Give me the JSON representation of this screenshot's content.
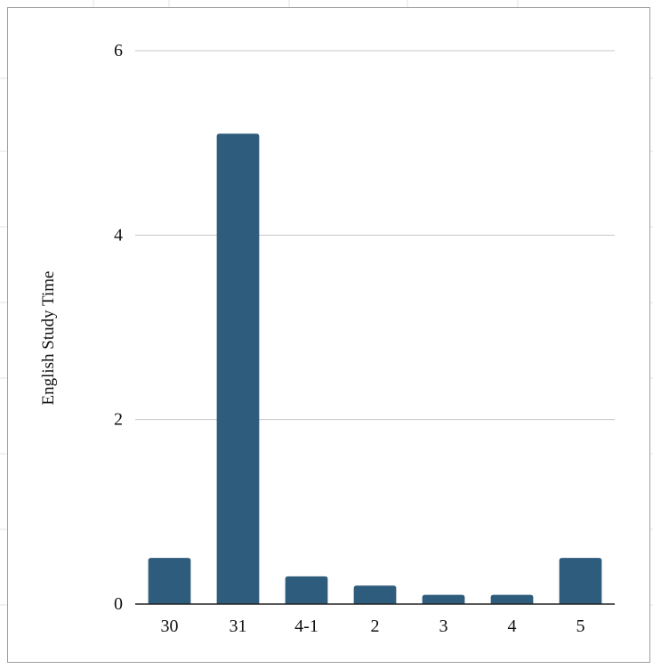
{
  "chart_data": {
    "type": "bar",
    "title": "",
    "xlabel": "",
    "ylabel": "English Study Time",
    "categories": [
      "30",
      "31",
      "4-1",
      "2",
      "3",
      "4",
      "5"
    ],
    "values": [
      0.5,
      5.1,
      0.3,
      0.2,
      0.1,
      0.1,
      0.5
    ],
    "ylim": [
      0,
      6
    ],
    "yticks": [
      "0",
      "2",
      "4",
      "6"
    ],
    "grid": true,
    "legend": "none",
    "bar_color": "#2e5c7d"
  }
}
